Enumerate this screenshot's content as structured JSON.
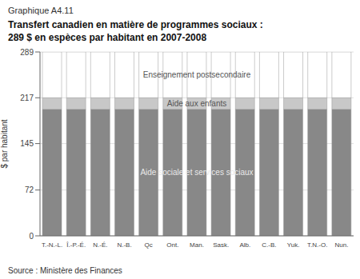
{
  "chart_data": {
    "type": "bar",
    "stacked": true,
    "subtitle": "Graphique A4.11",
    "title": "Transfert canadien en matière de programmes sociaux :\n289 $ en espèces par habitant en 2007-2008",
    "ylabel": "$ par habitant",
    "source": "Source : Ministère des Finances",
    "categories": [
      "T.-N.-L.",
      "Î.-P.-É.",
      "N.-É.",
      "N.-B.",
      "Qc",
      "Ont.",
      "Man.",
      "Sask.",
      "Alb.",
      "C.-B.",
      "Yuk.",
      "T.N.-O.",
      "Nun."
    ],
    "series": [
      {
        "color": "#888888",
        "values": [
          199,
          199,
          199,
          199,
          199,
          199,
          199,
          199,
          199,
          199,
          199,
          199,
          199
        ]
      },
      {
        "color": "#c8c8c8",
        "values": [
          18,
          18,
          18,
          18,
          18,
          18,
          18,
          18,
          18,
          18,
          18,
          18,
          18
        ]
      },
      {
        "color": "#ffffff",
        "values": [
          72,
          72,
          72,
          72,
          72,
          72,
          72,
          72,
          72,
          72,
          72,
          72,
          72
        ]
      }
    ],
    "ylim": [
      0,
      289
    ],
    "yticks": [
      0,
      72,
      145,
      217,
      289
    ],
    "grid": true,
    "annotations": [
      {
        "text": "Aide sociale et services sociaux",
        "x": "Man.",
        "y": 100
      },
      {
        "text": "Aide aux enfants",
        "x": "Man.",
        "y": 208
      },
      {
        "text": "Enseignement postsecondaire",
        "x": "Man.",
        "y": 253
      }
    ]
  }
}
